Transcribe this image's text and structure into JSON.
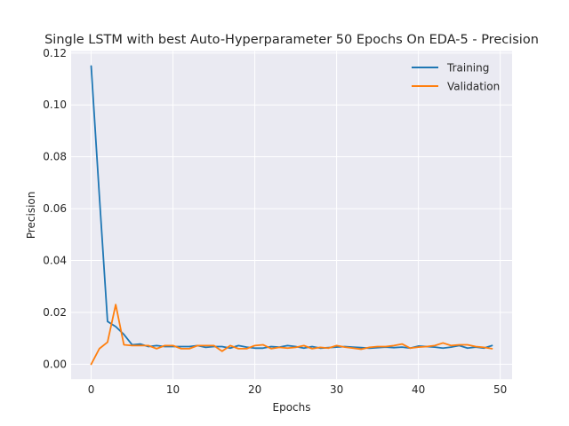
{
  "chart_data": {
    "type": "line",
    "title": "Single LSTM with best Auto-Hyperparameter 50 Epochs On EDA-5 - Precision",
    "xlabel": "Epochs",
    "ylabel": "Precision",
    "xlim": [
      -2.45,
      51.45
    ],
    "ylim": [
      -0.00575,
      0.12075
    ],
    "xticks": [
      0,
      10,
      20,
      30,
      40,
      50
    ],
    "xtick_labels": [
      "0",
      "10",
      "20",
      "30",
      "40",
      "50"
    ],
    "yticks": [
      0.0,
      0.02,
      0.04,
      0.06,
      0.08,
      0.1,
      0.12
    ],
    "ytick_labels": [
      "0.00",
      "0.02",
      "0.04",
      "0.06",
      "0.08",
      "0.10",
      "0.12"
    ],
    "grid": true,
    "legend_position": "top-right",
    "x": [
      0,
      1,
      2,
      3,
      4,
      5,
      6,
      7,
      8,
      9,
      10,
      11,
      12,
      13,
      14,
      15,
      16,
      17,
      18,
      19,
      20,
      21,
      22,
      23,
      24,
      25,
      26,
      27,
      28,
      29,
      30,
      31,
      32,
      33,
      34,
      35,
      36,
      37,
      38,
      39,
      40,
      41,
      42,
      43,
      44,
      45,
      46,
      47,
      48,
      49
    ],
    "series": [
      {
        "name": "Training",
        "color": "#1f77b4",
        "values": [
          0.115,
          0.065,
          0.0165,
          0.0145,
          0.0115,
          0.0075,
          0.0078,
          0.0068,
          0.0072,
          0.0068,
          0.0068,
          0.0068,
          0.0068,
          0.0072,
          0.0065,
          0.0068,
          0.0068,
          0.0062,
          0.0072,
          0.0066,
          0.0062,
          0.0062,
          0.0068,
          0.0066,
          0.0072,
          0.0068,
          0.0062,
          0.0068,
          0.0062,
          0.0064,
          0.0066,
          0.0068,
          0.0066,
          0.0064,
          0.0062,
          0.0064,
          0.0066,
          0.0064,
          0.0066,
          0.0062,
          0.007,
          0.0068,
          0.0066,
          0.0062,
          0.0066,
          0.0072,
          0.0062,
          0.0066,
          0.0062,
          0.0072
        ]
      },
      {
        "name": "Validation",
        "color": "#ff7f0e",
        "values": [
          0.0,
          0.006,
          0.0085,
          0.023,
          0.0075,
          0.0072,
          0.0072,
          0.0072,
          0.006,
          0.0072,
          0.0072,
          0.006,
          0.006,
          0.0072,
          0.0072,
          0.0072,
          0.005,
          0.0072,
          0.006,
          0.006,
          0.0072,
          0.0075,
          0.006,
          0.0065,
          0.0062,
          0.0065,
          0.0072,
          0.006,
          0.0065,
          0.0062,
          0.0072,
          0.0066,
          0.0062,
          0.0058,
          0.0065,
          0.0068,
          0.0068,
          0.0072,
          0.0078,
          0.0062,
          0.0066,
          0.0068,
          0.0072,
          0.0082,
          0.0072,
          0.0075,
          0.0075,
          0.0068,
          0.0065,
          0.006
        ]
      }
    ]
  }
}
